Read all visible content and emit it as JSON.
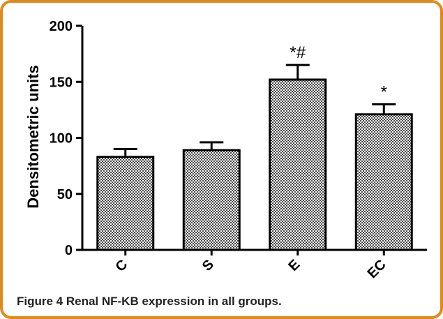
{
  "caption": {
    "label": "Figure 4",
    "text": " Renal NF-KB expression in all groups."
  },
  "colors": {
    "frame_border": "#e08a1e",
    "bar_pattern_dark": "#4a4a4a",
    "bar_pattern_light": "#ffffff",
    "axis": "#000000"
  },
  "chart_data": {
    "type": "bar",
    "title": "",
    "xlabel": "",
    "ylabel": "Densitometric units",
    "ylim": [
      0,
      200
    ],
    "yticks": [
      0,
      50,
      100,
      150,
      200
    ],
    "categories": [
      "C",
      "S",
      "E",
      "EC"
    ],
    "values": [
      83,
      89,
      152,
      121
    ],
    "errors": [
      7,
      7,
      13,
      9
    ],
    "annotations": [
      "",
      "",
      "*#",
      "*"
    ],
    "grid": false
  }
}
